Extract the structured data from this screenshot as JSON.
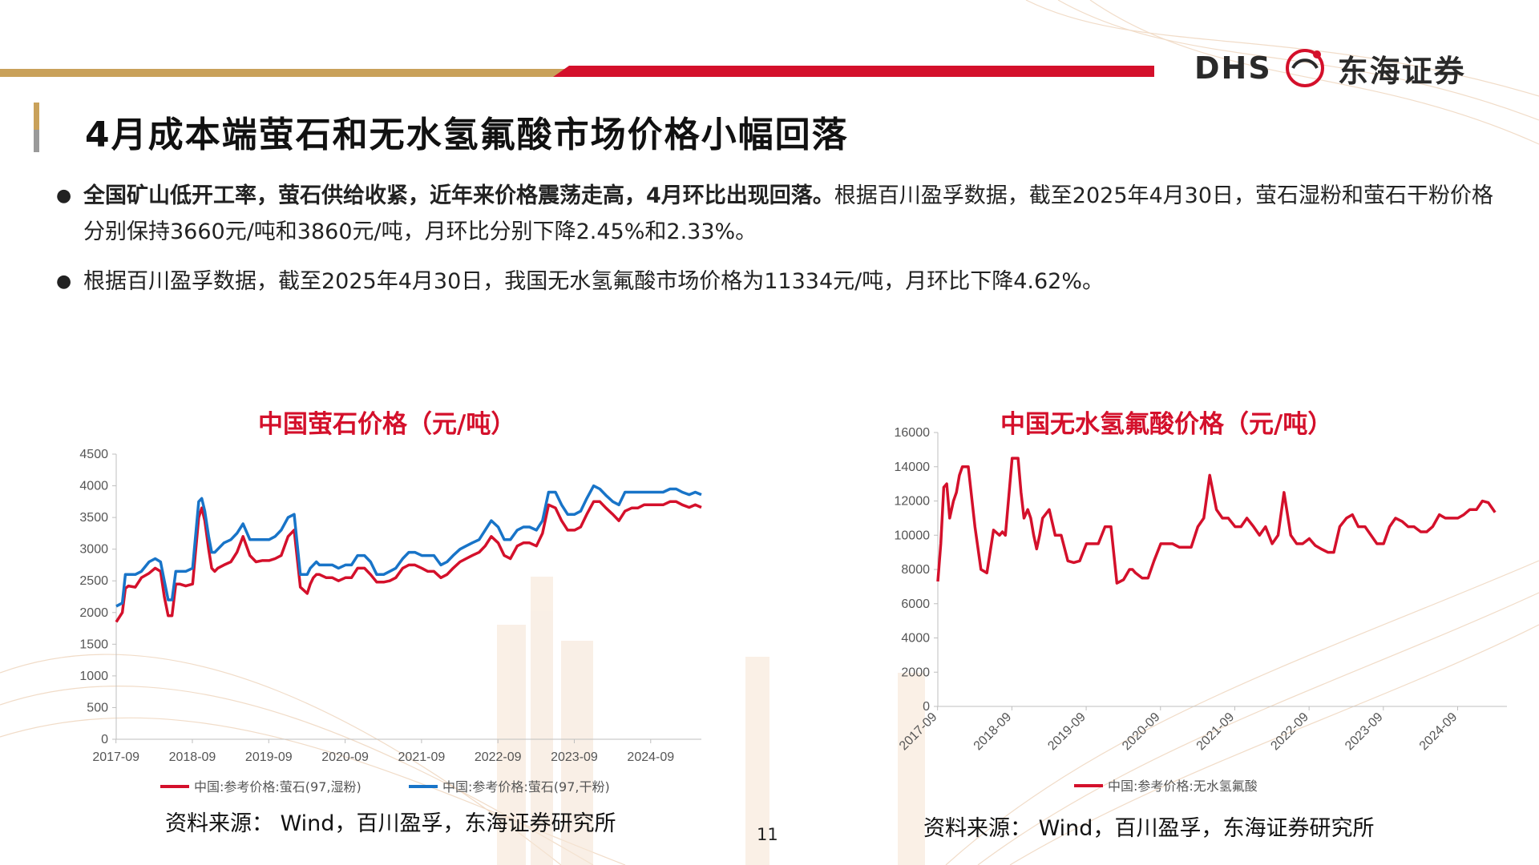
{
  "header": {
    "logo_latin": "DHS",
    "logo_cn": "东海证券",
    "colors": {
      "gold": "#c9a15a",
      "red": "#d4102b"
    }
  },
  "page_title": "4月成本端萤石和无水氢氟酸市场价格小幅回落",
  "bullets": [
    {
      "bold": "全国矿山低开工率，萤石供给收紧，近年来价格震荡走高，4月环比出现回落。",
      "text": "根据百川盈孚数据，截至2025年4月30日，萤石湿粉和萤石干粉价格分别保持3660元/吨和3860元/吨，月环比分别下降2.45%和2.33%。"
    },
    {
      "bold": "",
      "text": "根据百川盈孚数据，截至2025年4月30日，我国无水氢氟酸市场价格为11334元/吨，月环比下降4.62%。"
    }
  ],
  "chart_data": [
    {
      "type": "line",
      "title": "中国萤石价格（元/吨）",
      "xlabel": "",
      "ylabel": "",
      "x_tick_labels": [
        "2017-09",
        "2018-09",
        "2019-09",
        "2020-09",
        "2021-09",
        "2022-09",
        "2023-09",
        "2024-09"
      ],
      "y_tick_labels": [
        "0",
        "500",
        "1000",
        "1500",
        "2000",
        "2500",
        "3000",
        "3500",
        "4000",
        "4500"
      ],
      "ylim": [
        0,
        4500
      ],
      "xlim": [
        2017.67,
        2025.33
      ],
      "x_time": [
        2017.67,
        2017.75,
        2017.79,
        2017.83,
        2017.92,
        2018.0,
        2018.1,
        2018.18,
        2018.25,
        2018.3,
        2018.35,
        2018.4,
        2018.45,
        2018.5,
        2018.58,
        2018.67,
        2018.75,
        2018.79,
        2018.83,
        2018.88,
        2018.92,
        2018.96,
        2019.0,
        2019.08,
        2019.17,
        2019.25,
        2019.33,
        2019.42,
        2019.5,
        2019.58,
        2019.67,
        2019.75,
        2019.83,
        2019.92,
        2020.0,
        2020.08,
        2020.17,
        2020.21,
        2020.25,
        2020.29,
        2020.33,
        2020.42,
        2020.5,
        2020.58,
        2020.67,
        2020.75,
        2020.83,
        2020.92,
        2021.0,
        2021.08,
        2021.17,
        2021.25,
        2021.33,
        2021.42,
        2021.5,
        2021.58,
        2021.67,
        2021.75,
        2021.83,
        2021.92,
        2022.0,
        2022.08,
        2022.17,
        2022.25,
        2022.33,
        2022.42,
        2022.5,
        2022.58,
        2022.67,
        2022.75,
        2022.83,
        2022.92,
        2023.0,
        2023.08,
        2023.17,
        2023.25,
        2023.33,
        2023.42,
        2023.5,
        2023.58,
        2023.67,
        2023.75,
        2023.83,
        2023.92,
        2024.0,
        2024.08,
        2024.17,
        2024.25,
        2024.33,
        2024.42,
        2024.5,
        2024.58,
        2024.67,
        2024.75,
        2024.83,
        2024.92,
        2025.0,
        2025.08,
        2025.17,
        2025.25,
        2025.33
      ],
      "series": [
        {
          "name": "中国:参考价格:萤石(97,湿粉)",
          "color": "#d4102b",
          "values": [
            1850,
            2000,
            2380,
            2420,
            2400,
            2550,
            2620,
            2700,
            2650,
            2250,
            1950,
            1950,
            2450,
            2450,
            2420,
            2450,
            3500,
            3650,
            3450,
            3000,
            2700,
            2650,
            2700,
            2750,
            2800,
            2950,
            3200,
            2900,
            2800,
            2820,
            2820,
            2850,
            2900,
            3200,
            3300,
            2400,
            2300,
            2450,
            2550,
            2600,
            2600,
            2550,
            2550,
            2500,
            2550,
            2550,
            2700,
            2700,
            2600,
            2480,
            2480,
            2500,
            2550,
            2700,
            2750,
            2750,
            2700,
            2650,
            2650,
            2550,
            2600,
            2700,
            2800,
            2850,
            2900,
            2950,
            3050,
            3200,
            3100,
            2900,
            2850,
            3050,
            3100,
            3100,
            3050,
            3250,
            3700,
            3650,
            3450,
            3300,
            3300,
            3350,
            3550,
            3750,
            3750,
            3650,
            3550,
            3450,
            3600,
            3650,
            3650,
            3700,
            3700,
            3700,
            3700,
            3750,
            3750,
            3700,
            3660,
            3700,
            3660
          ]
        },
        {
          "name": "中国:参考价格:萤石(97,干粉)",
          "color": "#1874c8",
          "values": [
            2100,
            2150,
            2600,
            2600,
            2600,
            2650,
            2800,
            2850,
            2800,
            2500,
            2200,
            2200,
            2650,
            2650,
            2650,
            2700,
            3750,
            3800,
            3600,
            3200,
            2950,
            2950,
            3000,
            3100,
            3150,
            3250,
            3400,
            3150,
            3150,
            3150,
            3150,
            3200,
            3300,
            3500,
            3550,
            2600,
            2600,
            2700,
            2750,
            2800,
            2750,
            2750,
            2750,
            2700,
            2750,
            2750,
            2900,
            2900,
            2800,
            2600,
            2600,
            2650,
            2700,
            2850,
            2950,
            2950,
            2900,
            2900,
            2900,
            2750,
            2800,
            2900,
            3000,
            3050,
            3100,
            3150,
            3300,
            3450,
            3350,
            3150,
            3150,
            3300,
            3350,
            3350,
            3300,
            3450,
            3900,
            3900,
            3700,
            3550,
            3550,
            3600,
            3800,
            4000,
            3950,
            3850,
            3750,
            3700,
            3900,
            3900,
            3900,
            3900,
            3900,
            3900,
            3900,
            3950,
            3950,
            3900,
            3860,
            3900,
            3860
          ]
        }
      ],
      "legend": "bottom"
    },
    {
      "type": "line",
      "title": "中国无水氢氟酸价格（元/吨）",
      "xlabel": "",
      "ylabel": "",
      "x_tick_labels": [
        "2017-09",
        "2018-09",
        "2019-09",
        "2020-09",
        "2021-09",
        "2022-09",
        "2023-09",
        "2024-09"
      ],
      "y_tick_labels": [
        "0",
        "2000",
        "4000",
        "6000",
        "8000",
        "10000",
        "12000",
        "14000",
        "16000"
      ],
      "ylim": [
        0,
        16000
      ],
      "xlim": [
        2017.67,
        2025.33
      ],
      "x_time": [
        2017.67,
        2017.71,
        2017.75,
        2017.79,
        2017.83,
        2017.88,
        2017.92,
        2017.96,
        2018.0,
        2018.08,
        2018.17,
        2018.25,
        2018.33,
        2018.42,
        2018.5,
        2018.54,
        2018.58,
        2018.67,
        2018.75,
        2018.79,
        2018.83,
        2018.88,
        2018.92,
        2018.96,
        2019.0,
        2019.04,
        2019.08,
        2019.17,
        2019.25,
        2019.33,
        2019.42,
        2019.5,
        2019.58,
        2019.67,
        2019.75,
        2019.83,
        2019.92,
        2020.0,
        2020.08,
        2020.17,
        2020.25,
        2020.29,
        2020.33,
        2020.42,
        2020.5,
        2020.58,
        2020.67,
        2020.75,
        2020.83,
        2020.92,
        2021.0,
        2021.08,
        2021.17,
        2021.25,
        2021.33,
        2021.42,
        2021.5,
        2021.58,
        2021.67,
        2021.75,
        2021.83,
        2021.92,
        2022.0,
        2022.08,
        2022.17,
        2022.25,
        2022.33,
        2022.42,
        2022.5,
        2022.58,
        2022.67,
        2022.75,
        2022.83,
        2022.92,
        2023.0,
        2023.08,
        2023.17,
        2023.25,
        2023.33,
        2023.42,
        2023.5,
        2023.58,
        2023.67,
        2023.75,
        2023.83,
        2023.92,
        2024.0,
        2024.08,
        2024.17,
        2024.25,
        2024.33,
        2024.42,
        2024.5,
        2024.58,
        2024.67,
        2024.75,
        2024.83,
        2024.92,
        2025.0,
        2025.08,
        2025.17,
        2025.25,
        2025.33
      ],
      "series": [
        {
          "name": "中国:参考价格:无水氢氟酸",
          "color": "#d4102b",
          "values": [
            7300,
            9500,
            12800,
            13000,
            11000,
            12000,
            12500,
            13500,
            14000,
            14000,
            10500,
            8000,
            7800,
            10300,
            10000,
            10200,
            10000,
            14500,
            14500,
            12500,
            11000,
            11500,
            11000,
            10000,
            9200,
            10000,
            11000,
            11500,
            10000,
            10000,
            8500,
            8400,
            8500,
            9500,
            9500,
            9500,
            10500,
            10500,
            7200,
            7400,
            8000,
            8000,
            7800,
            7500,
            7500,
            8500,
            9500,
            9500,
            9500,
            9300,
            9300,
            9300,
            10500,
            11000,
            13500,
            11500,
            11000,
            11000,
            10500,
            10500,
            11000,
            10500,
            10000,
            10500,
            9500,
            10000,
            12500,
            10000,
            9500,
            9500,
            9800,
            9400,
            9200,
            9000,
            9000,
            10500,
            11000,
            11200,
            10500,
            10500,
            10000,
            9500,
            9500,
            10500,
            11000,
            10800,
            10500,
            10500,
            10200,
            10200,
            10500,
            11200,
            11000,
            11000,
            11000,
            11200,
            11500,
            11500,
            12000,
            11900,
            11334
          ]
        }
      ],
      "legend": "bottom"
    }
  ],
  "sources": [
    "资料来源： Wind，百川盈孚，东海证券研究所",
    "资料来源： Wind，百川盈孚，东海证券研究所"
  ],
  "page_number": "11"
}
